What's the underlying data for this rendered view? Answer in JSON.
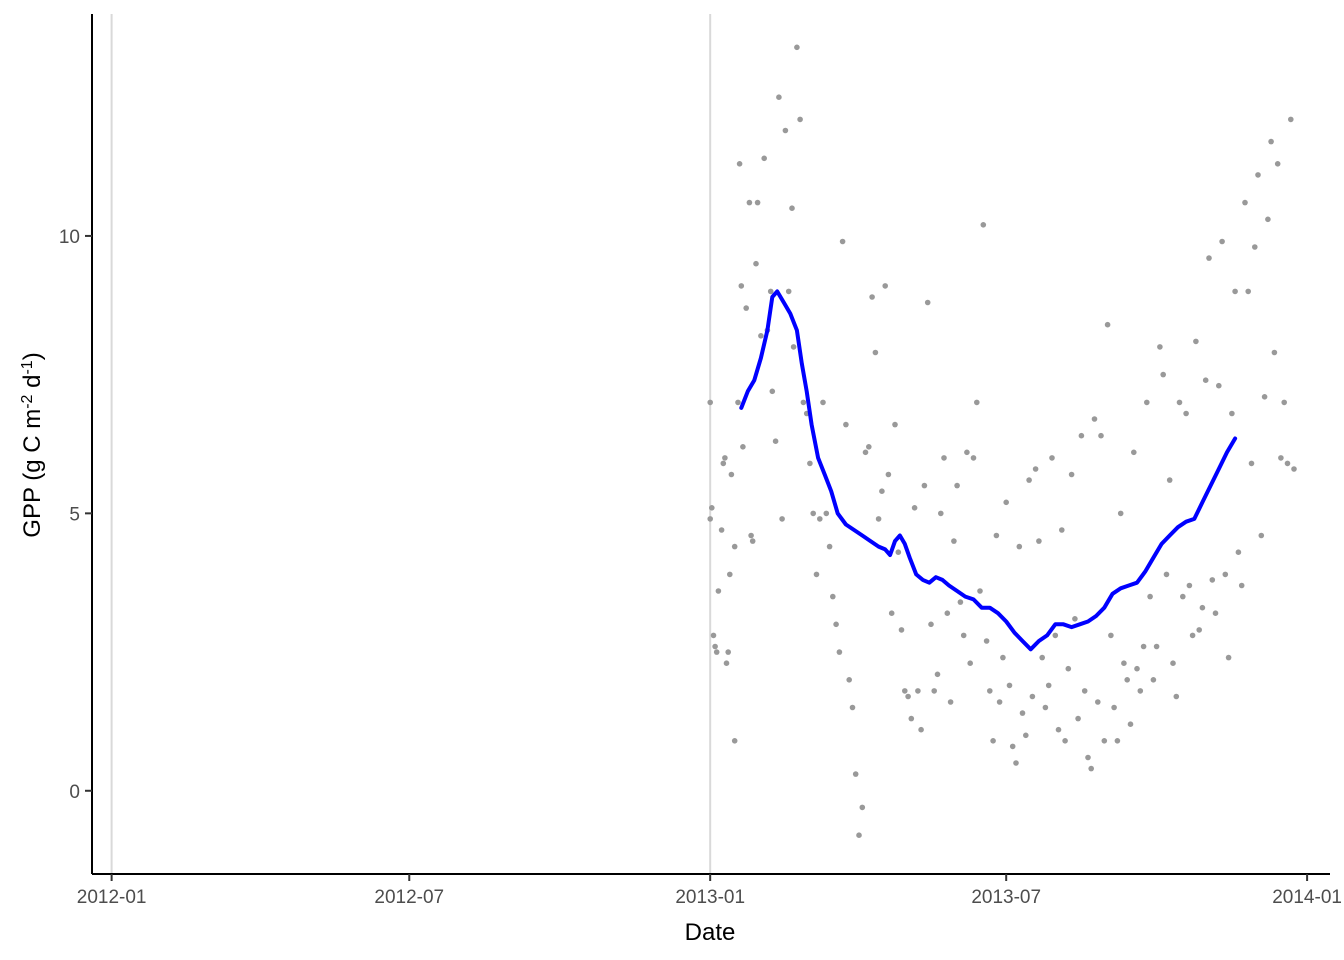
{
  "chart_data": {
    "type": "scatter",
    "xlabel": "Date",
    "ylabel": "GPP (g C m",
    "ylabel_sup1": "-2",
    "ylabel_mid": " d",
    "ylabel_sup2": "-1",
    "ylabel_end": ")",
    "xlim": [
      "2011-12-20",
      "2014-01-15"
    ],
    "ylim": [
      -1.5,
      14
    ],
    "x_ticks": [
      {
        "date": "2012-01-01",
        "label": "2012-01"
      },
      {
        "date": "2012-07-01",
        "label": "2012-07"
      },
      {
        "date": "2013-01-01",
        "label": "2013-01"
      },
      {
        "date": "2013-07-01",
        "label": "2013-07"
      },
      {
        "date": "2014-01-01",
        "label": "2014-01"
      }
    ],
    "y_ticks": [
      {
        "value": 0,
        "label": "0"
      },
      {
        "value": 5,
        "label": "5"
      },
      {
        "value": 10,
        "label": "10"
      }
    ],
    "x_gridlines": [
      "2012-01-01",
      "2013-01-01"
    ],
    "colors": {
      "points": "#999999",
      "smooth": "#0000ff",
      "gridline": "#d9d9d9",
      "axis": "#000000"
    },
    "series": [
      {
        "kind": "points",
        "points": [
          [
            "2013-01-01",
            4.9
          ],
          [
            "2013-01-01",
            7.0
          ],
          [
            "2013-01-02",
            5.1
          ],
          [
            "2013-01-03",
            2.8
          ],
          [
            "2013-01-04",
            2.6
          ],
          [
            "2013-01-05",
            2.5
          ],
          [
            "2013-01-06",
            3.6
          ],
          [
            "2013-01-08",
            4.7
          ],
          [
            "2013-01-09",
            5.9
          ],
          [
            "2013-01-10",
            6.0
          ],
          [
            "2013-01-11",
            2.3
          ],
          [
            "2013-01-12",
            2.5
          ],
          [
            "2013-01-13",
            3.9
          ],
          [
            "2013-01-14",
            5.7
          ],
          [
            "2013-01-16",
            0.9
          ],
          [
            "2013-01-16",
            4.4
          ],
          [
            "2013-01-18",
            7.0
          ],
          [
            "2013-01-19",
            11.3
          ],
          [
            "2013-01-20",
            9.1
          ],
          [
            "2013-01-21",
            6.2
          ],
          [
            "2013-01-23",
            8.7
          ],
          [
            "2013-01-25",
            10.6
          ],
          [
            "2013-01-26",
            4.6
          ],
          [
            "2013-01-27",
            4.5
          ],
          [
            "2013-01-29",
            9.5
          ],
          [
            "2013-01-30",
            10.6
          ],
          [
            "2013-02-01",
            8.2
          ],
          [
            "2013-02-03",
            11.4
          ],
          [
            "2013-02-05",
            8.3
          ],
          [
            "2013-02-07",
            9.0
          ],
          [
            "2013-02-08",
            7.2
          ],
          [
            "2013-02-10",
            6.3
          ],
          [
            "2013-02-12",
            12.5
          ],
          [
            "2013-02-14",
            4.9
          ],
          [
            "2013-02-16",
            11.9
          ],
          [
            "2013-02-18",
            9.0
          ],
          [
            "2013-02-20",
            10.5
          ],
          [
            "2013-02-21",
            8.0
          ],
          [
            "2013-02-23",
            13.4
          ],
          [
            "2013-02-25",
            12.1
          ],
          [
            "2013-02-27",
            7.0
          ],
          [
            "2013-03-01",
            6.8
          ],
          [
            "2013-03-03",
            5.9
          ],
          [
            "2013-03-05",
            5.0
          ],
          [
            "2013-03-07",
            3.9
          ],
          [
            "2013-03-09",
            4.9
          ],
          [
            "2013-03-11",
            7.0
          ],
          [
            "2013-03-13",
            5.0
          ],
          [
            "2013-03-15",
            4.4
          ],
          [
            "2013-03-17",
            3.5
          ],
          [
            "2013-03-19",
            3.0
          ],
          [
            "2013-03-21",
            2.5
          ],
          [
            "2013-03-23",
            9.9
          ],
          [
            "2013-03-25",
            6.6
          ],
          [
            "2013-03-27",
            2.0
          ],
          [
            "2013-03-29",
            1.5
          ],
          [
            "2013-03-31",
            0.3
          ],
          [
            "2013-04-02",
            -0.8
          ],
          [
            "2013-04-04",
            -0.3
          ],
          [
            "2013-04-06",
            6.1
          ],
          [
            "2013-04-08",
            6.2
          ],
          [
            "2013-04-10",
            8.9
          ],
          [
            "2013-04-12",
            7.9
          ],
          [
            "2013-04-14",
            4.9
          ],
          [
            "2013-04-16",
            5.4
          ],
          [
            "2013-04-18",
            9.1
          ],
          [
            "2013-04-20",
            5.7
          ],
          [
            "2013-04-22",
            3.2
          ],
          [
            "2013-04-24",
            6.6
          ],
          [
            "2013-04-26",
            4.3
          ],
          [
            "2013-04-28",
            2.9
          ],
          [
            "2013-04-30",
            1.8
          ],
          [
            "2013-05-02",
            1.7
          ],
          [
            "2013-05-04",
            1.3
          ],
          [
            "2013-05-06",
            5.1
          ],
          [
            "2013-05-08",
            1.8
          ],
          [
            "2013-05-10",
            1.1
          ],
          [
            "2013-05-12",
            5.5
          ],
          [
            "2013-05-14",
            8.8
          ],
          [
            "2013-05-16",
            3.0
          ],
          [
            "2013-05-18",
            1.8
          ],
          [
            "2013-05-20",
            2.1
          ],
          [
            "2013-05-22",
            5.0
          ],
          [
            "2013-05-24",
            6.0
          ],
          [
            "2013-05-26",
            3.2
          ],
          [
            "2013-05-28",
            1.6
          ],
          [
            "2013-05-30",
            4.5
          ],
          [
            "2013-06-01",
            5.5
          ],
          [
            "2013-06-03",
            3.4
          ],
          [
            "2013-06-05",
            2.8
          ],
          [
            "2013-06-07",
            6.1
          ],
          [
            "2013-06-09",
            2.3
          ],
          [
            "2013-06-11",
            6.0
          ],
          [
            "2013-06-13",
            7.0
          ],
          [
            "2013-06-15",
            3.6
          ],
          [
            "2013-06-17",
            10.2
          ],
          [
            "2013-06-19",
            2.7
          ],
          [
            "2013-06-21",
            1.8
          ],
          [
            "2013-06-23",
            0.9
          ],
          [
            "2013-06-25",
            4.6
          ],
          [
            "2013-06-27",
            1.6
          ],
          [
            "2013-06-29",
            2.4
          ],
          [
            "2013-07-01",
            5.2
          ],
          [
            "2013-07-03",
            1.9
          ],
          [
            "2013-07-05",
            0.8
          ],
          [
            "2013-07-07",
            0.5
          ],
          [
            "2013-07-09",
            4.4
          ],
          [
            "2013-07-11",
            1.4
          ],
          [
            "2013-07-13",
            1.0
          ],
          [
            "2013-07-15",
            5.6
          ],
          [
            "2013-07-17",
            1.7
          ],
          [
            "2013-07-19",
            5.8
          ],
          [
            "2013-07-21",
            4.5
          ],
          [
            "2013-07-23",
            2.4
          ],
          [
            "2013-07-25",
            1.5
          ],
          [
            "2013-07-27",
            1.9
          ],
          [
            "2013-07-29",
            6.0
          ],
          [
            "2013-07-31",
            2.8
          ],
          [
            "2013-08-02",
            1.1
          ],
          [
            "2013-08-04",
            4.7
          ],
          [
            "2013-08-06",
            0.9
          ],
          [
            "2013-08-08",
            2.2
          ],
          [
            "2013-08-10",
            5.7
          ],
          [
            "2013-08-12",
            3.1
          ],
          [
            "2013-08-14",
            1.3
          ],
          [
            "2013-08-16",
            6.4
          ],
          [
            "2013-08-18",
            1.8
          ],
          [
            "2013-08-20",
            0.6
          ],
          [
            "2013-08-22",
            0.4
          ],
          [
            "2013-08-24",
            6.7
          ],
          [
            "2013-08-26",
            1.6
          ],
          [
            "2013-08-28",
            6.4
          ],
          [
            "2013-08-30",
            0.9
          ],
          [
            "2013-09-01",
            8.4
          ],
          [
            "2013-09-03",
            2.8
          ],
          [
            "2013-09-05",
            1.5
          ],
          [
            "2013-09-07",
            0.9
          ],
          [
            "2013-09-09",
            5.0
          ],
          [
            "2013-09-11",
            2.3
          ],
          [
            "2013-09-13",
            2.0
          ],
          [
            "2013-09-15",
            1.2
          ],
          [
            "2013-09-17",
            6.1
          ],
          [
            "2013-09-19",
            2.2
          ],
          [
            "2013-09-21",
            1.8
          ],
          [
            "2013-09-23",
            2.6
          ],
          [
            "2013-09-25",
            7.0
          ],
          [
            "2013-09-27",
            3.5
          ],
          [
            "2013-09-29",
            2.0
          ],
          [
            "2013-10-01",
            2.6
          ],
          [
            "2013-10-03",
            8.0
          ],
          [
            "2013-10-05",
            7.5
          ],
          [
            "2013-10-07",
            3.9
          ],
          [
            "2013-10-09",
            5.6
          ],
          [
            "2013-10-11",
            2.3
          ],
          [
            "2013-10-13",
            1.7
          ],
          [
            "2013-10-15",
            7.0
          ],
          [
            "2013-10-17",
            3.5
          ],
          [
            "2013-10-19",
            6.8
          ],
          [
            "2013-10-21",
            3.7
          ],
          [
            "2013-10-23",
            2.8
          ],
          [
            "2013-10-25",
            8.1
          ],
          [
            "2013-10-27",
            2.9
          ],
          [
            "2013-10-29",
            3.3
          ],
          [
            "2013-10-31",
            7.4
          ],
          [
            "2013-11-02",
            9.6
          ],
          [
            "2013-11-04",
            3.8
          ],
          [
            "2013-11-06",
            3.2
          ],
          [
            "2013-11-08",
            7.3
          ],
          [
            "2013-11-10",
            9.9
          ],
          [
            "2013-11-12",
            3.9
          ],
          [
            "2013-11-14",
            2.4
          ],
          [
            "2013-11-16",
            6.8
          ],
          [
            "2013-11-18",
            9.0
          ],
          [
            "2013-11-20",
            4.3
          ],
          [
            "2013-11-22",
            3.7
          ],
          [
            "2013-11-24",
            10.6
          ],
          [
            "2013-11-26",
            9.0
          ],
          [
            "2013-11-28",
            5.9
          ],
          [
            "2013-11-30",
            9.8
          ],
          [
            "2013-12-02",
            11.1
          ],
          [
            "2013-12-04",
            4.6
          ],
          [
            "2013-12-06",
            7.1
          ],
          [
            "2013-12-08",
            10.3
          ],
          [
            "2013-12-10",
            11.7
          ],
          [
            "2013-12-12",
            7.9
          ],
          [
            "2013-12-14",
            11.3
          ],
          [
            "2013-12-16",
            6.0
          ],
          [
            "2013-12-18",
            7.0
          ],
          [
            "2013-12-20",
            5.9
          ],
          [
            "2013-12-22",
            12.1
          ],
          [
            "2013-12-24",
            5.8
          ]
        ]
      },
      {
        "kind": "smooth",
        "points": [
          [
            "2013-01-20",
            6.9
          ],
          [
            "2013-01-24",
            7.2
          ],
          [
            "2013-01-28",
            7.4
          ],
          [
            "2013-02-01",
            7.8
          ],
          [
            "2013-02-05",
            8.3
          ],
          [
            "2013-02-08",
            8.9
          ],
          [
            "2013-02-11",
            9.0
          ],
          [
            "2013-02-15",
            8.8
          ],
          [
            "2013-02-19",
            8.6
          ],
          [
            "2013-02-23",
            8.3
          ],
          [
            "2013-02-26",
            7.7
          ],
          [
            "2013-03-01",
            7.2
          ],
          [
            "2013-03-04",
            6.6
          ],
          [
            "2013-03-08",
            6.0
          ],
          [
            "2013-03-12",
            5.7
          ],
          [
            "2013-03-16",
            5.4
          ],
          [
            "2013-03-20",
            5.0
          ],
          [
            "2013-03-25",
            4.8
          ],
          [
            "2013-03-30",
            4.7
          ],
          [
            "2013-04-04",
            4.6
          ],
          [
            "2013-04-09",
            4.5
          ],
          [
            "2013-04-14",
            4.4
          ],
          [
            "2013-04-18",
            4.35
          ],
          [
            "2013-04-21",
            4.25
          ],
          [
            "2013-04-24",
            4.5
          ],
          [
            "2013-04-27",
            4.6
          ],
          [
            "2013-04-30",
            4.45
          ],
          [
            "2013-05-03",
            4.2
          ],
          [
            "2013-05-07",
            3.9
          ],
          [
            "2013-05-11",
            3.8
          ],
          [
            "2013-05-15",
            3.75
          ],
          [
            "2013-05-19",
            3.85
          ],
          [
            "2013-05-23",
            3.8
          ],
          [
            "2013-05-27",
            3.7
          ],
          [
            "2013-06-01",
            3.6
          ],
          [
            "2013-06-06",
            3.5
          ],
          [
            "2013-06-11",
            3.45
          ],
          [
            "2013-06-16",
            3.3
          ],
          [
            "2013-06-21",
            3.3
          ],
          [
            "2013-06-26",
            3.2
          ],
          [
            "2013-07-01",
            3.05
          ],
          [
            "2013-07-06",
            2.85
          ],
          [
            "2013-07-11",
            2.7
          ],
          [
            "2013-07-16",
            2.55
          ],
          [
            "2013-07-21",
            2.7
          ],
          [
            "2013-07-26",
            2.8
          ],
          [
            "2013-07-31",
            3.0
          ],
          [
            "2013-08-05",
            3.0
          ],
          [
            "2013-08-10",
            2.95
          ],
          [
            "2013-08-15",
            3.0
          ],
          [
            "2013-08-20",
            3.05
          ],
          [
            "2013-08-25",
            3.15
          ],
          [
            "2013-08-30",
            3.3
          ],
          [
            "2013-09-04",
            3.55
          ],
          [
            "2013-09-09",
            3.65
          ],
          [
            "2013-09-14",
            3.7
          ],
          [
            "2013-09-19",
            3.75
          ],
          [
            "2013-09-24",
            3.95
          ],
          [
            "2013-09-29",
            4.2
          ],
          [
            "2013-10-04",
            4.45
          ],
          [
            "2013-10-09",
            4.6
          ],
          [
            "2013-10-14",
            4.75
          ],
          [
            "2013-10-19",
            4.85
          ],
          [
            "2013-10-24",
            4.9
          ],
          [
            "2013-10-29",
            5.2
          ],
          [
            "2013-11-03",
            5.5
          ],
          [
            "2013-11-08",
            5.8
          ],
          [
            "2013-11-13",
            6.1
          ],
          [
            "2013-11-18",
            6.35
          ]
        ]
      }
    ]
  }
}
